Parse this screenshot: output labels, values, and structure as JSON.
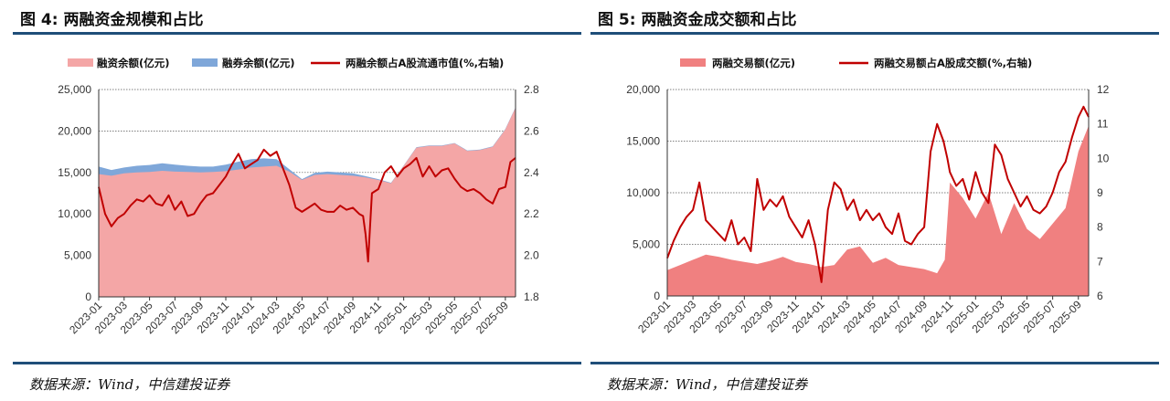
{
  "figures": [
    {
      "number": "图 4:",
      "title": "两融资金规模和占比",
      "source": "数据来源：Wind，中信建投证券"
    },
    {
      "number": "图 5:",
      "title": "两融资金成交额和占比",
      "source": "数据来源：Wind，中信建投证券"
    }
  ],
  "chart_data": [
    {
      "type": "area",
      "x": [
        "2023-01",
        "2023-03",
        "2023-05",
        "2023-07",
        "2023-09",
        "2023-11",
        "2024-01",
        "2024-03",
        "2024-05",
        "2024-07",
        "2024-09",
        "2024-11",
        "2025-01",
        "2025-03",
        "2025-05",
        "2025-07",
        "2025-09"
      ],
      "x_range": [
        0,
        16.4
      ],
      "y_left": {
        "range": [
          0,
          25000
        ],
        "ticks": [
          "0",
          "5,000",
          "10,000",
          "15,000",
          "20,000",
          "25,000"
        ]
      },
      "y_right": {
        "range": [
          1.8,
          2.8
        ],
        "ticks": [
          "1.8",
          "2.0",
          "2.2",
          "2.4",
          "2.6",
          "2.8"
        ]
      },
      "grid": "horizontal-dotted",
      "legend_position": "top",
      "series": [
        {
          "name": "融资余额(亿元)",
          "kind": "area",
          "axis": "left",
          "color": "#f4a6a6",
          "x": [
            0,
            0.5,
            1,
            1.5,
            2,
            2.5,
            3,
            3.5,
            4,
            4.5,
            5,
            5.5,
            6,
            6.5,
            7,
            7.5,
            8,
            8.5,
            9,
            9.5,
            10,
            10.5,
            11,
            11.5,
            12,
            12.5,
            13,
            13.5,
            14,
            14.5,
            15,
            15.5,
            16,
            16.4
          ],
          "values": [
            14800,
            14600,
            14900,
            15000,
            15050,
            15200,
            15100,
            15050,
            15000,
            15050,
            15150,
            15350,
            15600,
            15700,
            15800,
            15100,
            14100,
            14700,
            14800,
            14700,
            14600,
            14400,
            14100,
            13700,
            15800,
            18000,
            18200,
            18200,
            18500,
            17600,
            17700,
            18100,
            20200,
            22800
          ]
        },
        {
          "name": "融券余额(亿元)",
          "kind": "area",
          "axis": "left",
          "color": "#7fa7d9",
          "x": [
            0,
            0.5,
            1,
            1.5,
            2,
            2.5,
            3,
            3.5,
            4,
            4.5,
            5,
            5.5,
            6,
            6.5,
            7,
            7.5,
            8,
            8.5,
            9,
            9.5,
            10,
            10.5,
            11,
            11.5,
            12,
            12.5,
            13,
            13.5,
            14,
            14.5,
            15,
            15.5,
            16,
            16.4
          ],
          "values": [
            15700,
            15300,
            15600,
            15800,
            15900,
            16100,
            15950,
            15800,
            15700,
            15700,
            15950,
            16300,
            16600,
            16700,
            16600,
            15400,
            14200,
            14950,
            15100,
            15000,
            14900,
            14550,
            14200,
            13750,
            15850,
            18050,
            18250,
            18250,
            18550,
            17650,
            17750,
            18150,
            20250,
            22850
          ]
        },
        {
          "name": "两融余额占A股流通市值(%,右轴)",
          "kind": "line",
          "axis": "right",
          "color": "#c00000",
          "x": [
            0,
            0.25,
            0.5,
            0.75,
            1,
            1.25,
            1.5,
            1.75,
            2,
            2.25,
            2.5,
            2.75,
            3,
            3.25,
            3.5,
            3.75,
            4,
            4.25,
            4.5,
            4.75,
            5,
            5.25,
            5.5,
            5.75,
            6,
            6.25,
            6.5,
            6.75,
            7,
            7.25,
            7.5,
            7.75,
            8,
            8.25,
            8.5,
            8.75,
            9,
            9.25,
            9.5,
            9.75,
            10,
            10.25,
            10.4,
            10.5,
            10.6,
            10.75,
            11,
            11.25,
            11.5,
            11.75,
            12,
            12.25,
            12.5,
            12.75,
            13,
            13.25,
            13.5,
            13.75,
            14,
            14.25,
            14.5,
            14.75,
            15,
            15.25,
            15.5,
            15.75,
            16,
            16.2,
            16.4
          ],
          "values": [
            2.33,
            2.2,
            2.14,
            2.18,
            2.2,
            2.24,
            2.27,
            2.26,
            2.29,
            2.25,
            2.24,
            2.29,
            2.22,
            2.26,
            2.19,
            2.2,
            2.25,
            2.29,
            2.3,
            2.34,
            2.38,
            2.44,
            2.49,
            2.42,
            2.44,
            2.46,
            2.51,
            2.48,
            2.5,
            2.42,
            2.34,
            2.23,
            2.21,
            2.23,
            2.25,
            2.22,
            2.21,
            2.21,
            2.24,
            2.22,
            2.23,
            2.2,
            2.19,
            2.1,
            1.97,
            2.3,
            2.32,
            2.4,
            2.43,
            2.38,
            2.42,
            2.44,
            2.47,
            2.38,
            2.43,
            2.38,
            2.41,
            2.42,
            2.37,
            2.33,
            2.31,
            2.32,
            2.3,
            2.27,
            2.25,
            2.32,
            2.33,
            2.45,
            2.47
          ]
        }
      ]
    },
    {
      "type": "area",
      "x": [
        "2023-01",
        "2023-03",
        "2023-05",
        "2023-07",
        "2023-09",
        "2023-11",
        "2024-01",
        "2024-03",
        "2024-05",
        "2024-07",
        "2024-09",
        "2024-11",
        "2025-01",
        "2025-03",
        "2025-05",
        "2025-07",
        "2025-09"
      ],
      "x_range": [
        0,
        16.4
      ],
      "y_left": {
        "range": [
          0,
          20000
        ],
        "ticks": [
          "0",
          "5,000",
          "10,000",
          "15,000",
          "20,000"
        ]
      },
      "y_right": {
        "range": [
          6,
          12
        ],
        "ticks": [
          "6",
          "7",
          "8",
          "9",
          "10",
          "11",
          "12"
        ]
      },
      "grid": "horizontal-dotted",
      "legend_position": "top",
      "series": [
        {
          "name": "两融交易额(亿元)",
          "kind": "area",
          "axis": "left",
          "color": "#f08080",
          "x": [
            0,
            0.5,
            1,
            1.5,
            2,
            2.5,
            3,
            3.5,
            4,
            4.5,
            5,
            5.5,
            6,
            6.5,
            7,
            7.5,
            8,
            8.5,
            9,
            9.5,
            10,
            10.5,
            10.8,
            11,
            11.5,
            12,
            12.5,
            13,
            13.5,
            14,
            14.5,
            15,
            15.5,
            16,
            16.4
          ],
          "values": [
            2500,
            3000,
            3500,
            4000,
            3800,
            3500,
            3300,
            3100,
            3400,
            3800,
            3300,
            3100,
            2800,
            3000,
            4500,
            4800,
            3200,
            3700,
            3000,
            2800,
            2600,
            2200,
            3500,
            11000,
            9500,
            7500,
            10000,
            6000,
            9000,
            6500,
            5500,
            7000,
            8500,
            14000,
            16500
          ]
        },
        {
          "name": "两融交易额占A股成交额(%,右轴)",
          "kind": "line",
          "axis": "right",
          "color": "#c00000",
          "x": [
            0,
            0.25,
            0.5,
            0.75,
            1,
            1.25,
            1.5,
            1.75,
            2,
            2.25,
            2.5,
            2.75,
            3,
            3.25,
            3.5,
            3.75,
            4,
            4.25,
            4.5,
            4.75,
            5,
            5.25,
            5.5,
            5.75,
            6,
            6.25,
            6.5,
            6.75,
            7,
            7.25,
            7.5,
            7.75,
            8,
            8.25,
            8.5,
            8.75,
            9,
            9.25,
            9.5,
            9.75,
            10,
            10.25,
            10.5,
            10.75,
            10.9,
            11,
            11.25,
            11.5,
            11.75,
            12,
            12.25,
            12.5,
            12.75,
            13,
            13.25,
            13.5,
            13.75,
            14,
            14.25,
            14.5,
            14.75,
            15,
            15.25,
            15.5,
            15.75,
            16,
            16.2,
            16.4
          ],
          "values": [
            7.1,
            7.6,
            8.0,
            8.3,
            8.5,
            9.3,
            8.2,
            8.0,
            7.8,
            7.6,
            8.2,
            7.5,
            7.7,
            7.3,
            9.4,
            8.5,
            8.8,
            8.6,
            8.9,
            8.3,
            8.0,
            7.7,
            8.2,
            7.5,
            6.4,
            8.5,
            9.3,
            9.1,
            8.5,
            8.8,
            8.2,
            8.5,
            8.2,
            8.4,
            8.0,
            7.8,
            8.4,
            7.6,
            7.5,
            7.8,
            8.0,
            10.2,
            11.0,
            10.5,
            10.0,
            9.6,
            9.2,
            9.4,
            8.8,
            9.6,
            9.0,
            8.7,
            10.4,
            10.1,
            9.4,
            9.0,
            8.6,
            8.9,
            8.5,
            8.4,
            8.6,
            9.0,
            9.6,
            9.9,
            10.6,
            11.2,
            11.5,
            11.2
          ]
        }
      ]
    }
  ]
}
